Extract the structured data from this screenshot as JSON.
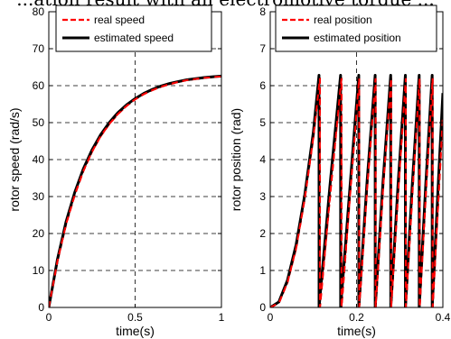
{
  "caption": "...ation result with an electromotive torque ...",
  "chart_data": [
    {
      "type": "line",
      "xlabel": "time(s)",
      "ylabel": "rotor speed (rad/s)",
      "xlim": [
        0,
        1
      ],
      "ylim": [
        0,
        80
      ],
      "xticks": [
        0,
        0.5,
        1
      ],
      "yticks": [
        0,
        10,
        20,
        30,
        40,
        50,
        60,
        70,
        80
      ],
      "xtick_labels": [
        "0",
        "0.5",
        "1"
      ],
      "ytick_labels": [
        "0",
        "10",
        "20",
        "30",
        "40",
        "50",
        "60",
        "70",
        "80"
      ],
      "grid": true,
      "legend_position": "top-right",
      "series": [
        {
          "name": "real speed",
          "color": "#ff0000",
          "style": "dashed",
          "x": [
            0,
            0.05,
            0.1,
            0.15,
            0.2,
            0.25,
            0.3,
            0.35,
            0.4,
            0.45,
            0.5,
            0.55,
            0.6,
            0.65,
            0.7,
            0.75,
            0.8,
            0.85,
            0.9,
            0.95,
            1.0
          ],
          "y": [
            0,
            12.5,
            22.5,
            30.4,
            36.9,
            42.1,
            46.3,
            49.6,
            52.3,
            54.5,
            56.3,
            57.7,
            58.8,
            59.7,
            60.4,
            61.0,
            61.5,
            61.8,
            62.1,
            62.3,
            62.5
          ]
        },
        {
          "name": "estimated speed",
          "color": "#000000",
          "style": "solid",
          "x": [
            0,
            0.05,
            0.1,
            0.15,
            0.2,
            0.25,
            0.3,
            0.35,
            0.4,
            0.45,
            0.5,
            0.55,
            0.6,
            0.65,
            0.7,
            0.75,
            0.8,
            0.85,
            0.9,
            0.95,
            1.0
          ],
          "y": [
            0,
            13.0,
            23.2,
            31.1,
            37.5,
            42.6,
            46.7,
            50.0,
            52.7,
            54.8,
            56.5,
            57.9,
            59.0,
            59.9,
            60.6,
            61.1,
            61.6,
            61.9,
            62.2,
            62.4,
            62.6
          ]
        }
      ]
    },
    {
      "type": "line",
      "xlabel": "time(s)",
      "ylabel": "rotor position (rad)",
      "xlim": [
        0,
        0.4
      ],
      "ylim": [
        0,
        8
      ],
      "xticks": [
        0,
        0.2,
        0.4
      ],
      "yticks": [
        0,
        1,
        2,
        3,
        4,
        5,
        6,
        7,
        8
      ],
      "xtick_labels": [
        "0",
        "0.2",
        "0.4"
      ],
      "ytick_labels": [
        "0",
        "1",
        "2",
        "3",
        "4",
        "5",
        "6",
        "7",
        "8"
      ],
      "grid": true,
      "legend_position": "top-right",
      "series": [
        {
          "name": "real position",
          "color": "#ff0000",
          "style": "dashed",
          "x": [
            0,
            0.02,
            0.04,
            0.06,
            0.08,
            0.1,
            0.115,
            0.1151,
            0.14,
            0.165,
            0.1651,
            0.186,
            0.2061,
            0.2062,
            0.225,
            0.2441,
            0.2442,
            0.262,
            0.2801,
            0.2802,
            0.297,
            0.3141,
            0.3142,
            0.33,
            0.3461,
            0.3462,
            0.3612,
            0.3762,
            0.3763,
            0.39,
            0.4
          ],
          "y": [
            0,
            0.12,
            0.68,
            1.6,
            2.95,
            4.6,
            6.2,
            0,
            3.2,
            6.2,
            0,
            3.2,
            6.2,
            0,
            3.3,
            6.2,
            0,
            3.3,
            6.2,
            0,
            3.2,
            6.2,
            0,
            3.2,
            6.2,
            0,
            3.2,
            6.2,
            0,
            3.0,
            5.2
          ]
        },
        {
          "name": "estimated position",
          "color": "#000000",
          "style": "solid",
          "x": [
            0,
            0.02,
            0.04,
            0.06,
            0.08,
            0.1,
            0.113,
            0.1131,
            0.138,
            0.163,
            0.1631,
            0.185,
            0.2051,
            0.2052,
            0.224,
            0.2431,
            0.2432,
            0.261,
            0.2791,
            0.2792,
            0.296,
            0.3131,
            0.3132,
            0.329,
            0.3451,
            0.3452,
            0.3602,
            0.3752,
            0.3753,
            0.39,
            0.4
          ],
          "y": [
            0,
            0.15,
            0.74,
            1.7,
            3.05,
            4.75,
            6.28,
            0,
            3.25,
            6.28,
            0,
            3.3,
            6.28,
            0,
            3.35,
            6.28,
            0,
            3.35,
            6.28,
            0,
            3.3,
            6.28,
            0,
            3.3,
            6.28,
            0,
            3.3,
            6.28,
            0,
            3.5,
            5.8
          ]
        }
      ]
    }
  ]
}
